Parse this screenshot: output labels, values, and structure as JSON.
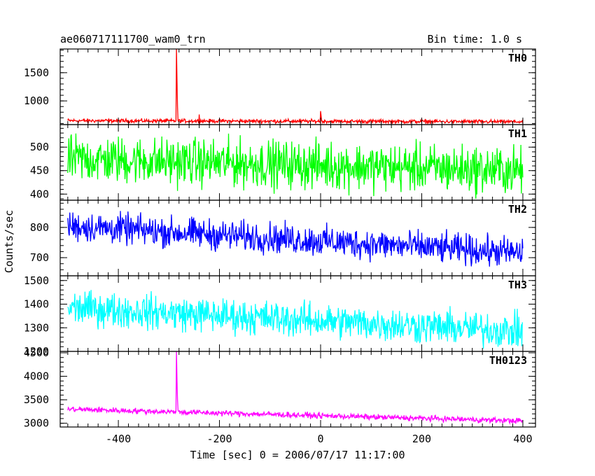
{
  "header": {
    "title": "ae060717111700_wam0_trn",
    "bin_time": "Bin time: 1.0 s"
  },
  "axes": {
    "xlabel": "Time [sec] 0 = 2006/07/17 11:17:00",
    "ylabel": "Counts/sec"
  },
  "chart_data": {
    "type": "line",
    "title": "ae060717111700_wam0_trn",
    "xlabel": "Time [sec] 0 = 2006/07/17 11:17:00",
    "ylabel": "Counts/sec",
    "xlim": [
      -515,
      425
    ],
    "x_ticks": [
      -400,
      -200,
      0,
      200,
      400
    ],
    "x_range_data": [
      -500,
      400
    ],
    "bin_time_s": 1.0,
    "panels": [
      {
        "name": "TH0",
        "color": "#ff0000",
        "ylim": [
          580,
          1920
        ],
        "y_ticks": [
          1000,
          1500
        ],
        "baseline_start": 650,
        "baseline_end": 630,
        "noise": 25,
        "spikes": [
          {
            "x": -285,
            "y": 1920
          },
          {
            "x": -284,
            "y": 1350
          },
          {
            "x": -283,
            "y": 900
          },
          {
            "x": -240,
            "y": 760
          },
          {
            "x": 0,
            "y": 820
          },
          {
            "x": 1,
            "y": 740
          }
        ]
      },
      {
        "name": "TH1",
        "color": "#00ff00",
        "ylim": [
          387,
          548
        ],
        "y_ticks": [
          400,
          450,
          500
        ],
        "baseline_start": 475,
        "baseline_end": 450,
        "noise": 38,
        "spikes": []
      },
      {
        "name": "TH2",
        "color": "#0000ff",
        "ylim": [
          640,
          890
        ],
        "y_ticks": [
          700,
          800
        ],
        "baseline_start": 805,
        "baseline_end": 715,
        "noise": 38,
        "spikes": []
      },
      {
        "name": "TH3",
        "color": "#00ffff",
        "ylim": [
          1200,
          1520
        ],
        "y_ticks": [
          1200,
          1300,
          1400,
          1500
        ],
        "baseline_start": 1385,
        "baseline_end": 1285,
        "noise": 55,
        "spikes": []
      },
      {
        "name": "TH0123",
        "color": "#ff00ff",
        "ylim": [
          2920,
          4530
        ],
        "y_ticks": [
          3000,
          3500,
          4000,
          4500
        ],
        "baseline_start": 3300,
        "baseline_end": 3050,
        "noise": 45,
        "spikes": [
          {
            "x": -285,
            "y": 4530
          },
          {
            "x": -284,
            "y": 3900
          },
          {
            "x": -283,
            "y": 3500
          }
        ]
      }
    ]
  }
}
